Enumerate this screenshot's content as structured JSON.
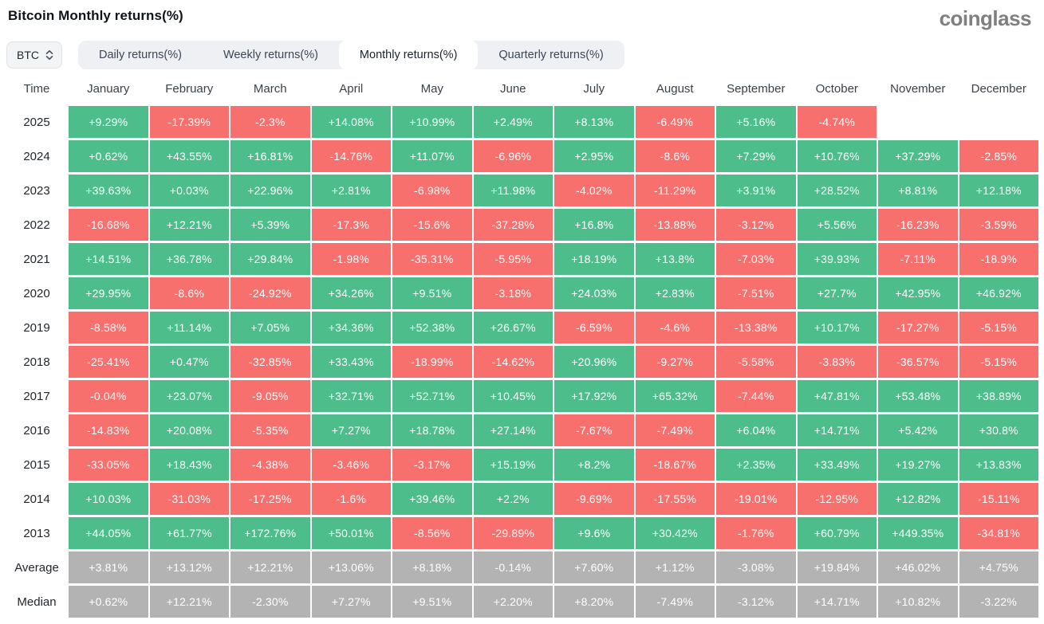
{
  "header": {
    "title": "Bitcoin Monthly returns(%)",
    "logo": "coinglass"
  },
  "controls": {
    "symbol": "BTC",
    "tabs": [
      {
        "id": "daily",
        "label": "Daily returns(%)",
        "active": false
      },
      {
        "id": "weekly",
        "label": "Weekly returns(%)",
        "active": false
      },
      {
        "id": "monthly",
        "label": "Monthly returns(%)",
        "active": true
      },
      {
        "id": "quarterly",
        "label": "Quarterly returns(%)",
        "active": false
      }
    ]
  },
  "chart_data": {
    "type": "heatmap",
    "title": "Bitcoin Monthly returns(%)",
    "colors": {
      "positive": "#4DBD8C",
      "negative": "#F7706E",
      "summary": "#B3B3B3"
    },
    "columns": [
      "Time",
      "January",
      "February",
      "March",
      "April",
      "May",
      "June",
      "July",
      "August",
      "September",
      "October",
      "November",
      "December"
    ],
    "rows": [
      {
        "label": "2025",
        "summary": false,
        "values": [
          "+9.29%",
          "-17.39%",
          "-2.3%",
          "+14.08%",
          "+10.99%",
          "+2.49%",
          "+8.13%",
          "-6.49%",
          "+5.16%",
          "-4.74%",
          null,
          null
        ]
      },
      {
        "label": "2024",
        "summary": false,
        "values": [
          "+0.62%",
          "+43.55%",
          "+16.81%",
          "-14.76%",
          "+11.07%",
          "-6.96%",
          "+2.95%",
          "-8.6%",
          "+7.29%",
          "+10.76%",
          "+37.29%",
          "-2.85%"
        ]
      },
      {
        "label": "2023",
        "summary": false,
        "values": [
          "+39.63%",
          "+0.03%",
          "+22.96%",
          "+2.81%",
          "-6.98%",
          "+11.98%",
          "-4.02%",
          "-11.29%",
          "+3.91%",
          "+28.52%",
          "+8.81%",
          "+12.18%"
        ]
      },
      {
        "label": "2022",
        "summary": false,
        "values": [
          "-16.68%",
          "+12.21%",
          "+5.39%",
          "-17.3%",
          "-15.6%",
          "-37.28%",
          "+16.8%",
          "-13.88%",
          "-3.12%",
          "+5.56%",
          "-16.23%",
          "-3.59%"
        ]
      },
      {
        "label": "2021",
        "summary": false,
        "values": [
          "+14.51%",
          "+36.78%",
          "+29.84%",
          "-1.98%",
          "-35.31%",
          "-5.95%",
          "+18.19%",
          "+13.8%",
          "-7.03%",
          "+39.93%",
          "-7.11%",
          "-18.9%"
        ]
      },
      {
        "label": "2020",
        "summary": false,
        "values": [
          "+29.95%",
          "-8.6%",
          "-24.92%",
          "+34.26%",
          "+9.51%",
          "-3.18%",
          "+24.03%",
          "+2.83%",
          "-7.51%",
          "+27.7%",
          "+42.95%",
          "+46.92%"
        ]
      },
      {
        "label": "2019",
        "summary": false,
        "values": [
          "-8.58%",
          "+11.14%",
          "+7.05%",
          "+34.36%",
          "+52.38%",
          "+26.67%",
          "-6.59%",
          "-4.6%",
          "-13.38%",
          "+10.17%",
          "-17.27%",
          "-5.15%"
        ]
      },
      {
        "label": "2018",
        "summary": false,
        "values": [
          "-25.41%",
          "+0.47%",
          "-32.85%",
          "+33.43%",
          "-18.99%",
          "-14.62%",
          "+20.96%",
          "-9.27%",
          "-5.58%",
          "-3.83%",
          "-36.57%",
          "-5.15%"
        ]
      },
      {
        "label": "2017",
        "summary": false,
        "values": [
          "-0.04%",
          "+23.07%",
          "-9.05%",
          "+32.71%",
          "+52.71%",
          "+10.45%",
          "+17.92%",
          "+65.32%",
          "-7.44%",
          "+47.81%",
          "+53.48%",
          "+38.89%"
        ]
      },
      {
        "label": "2016",
        "summary": false,
        "values": [
          "-14.83%",
          "+20.08%",
          "-5.35%",
          "+7.27%",
          "+18.78%",
          "+27.14%",
          "-7.67%",
          "-7.49%",
          "+6.04%",
          "+14.71%",
          "+5.42%",
          "+30.8%"
        ]
      },
      {
        "label": "2015",
        "summary": false,
        "values": [
          "-33.05%",
          "+18.43%",
          "-4.38%",
          "-3.46%",
          "-3.17%",
          "+15.19%",
          "+8.2%",
          "-18.67%",
          "+2.35%",
          "+33.49%",
          "+19.27%",
          "+13.83%"
        ]
      },
      {
        "label": "2014",
        "summary": false,
        "values": [
          "+10.03%",
          "-31.03%",
          "-17.25%",
          "-1.6%",
          "+39.46%",
          "+2.2%",
          "-9.69%",
          "-17.55%",
          "-19.01%",
          "-12.95%",
          "+12.82%",
          "-15.11%"
        ]
      },
      {
        "label": "2013",
        "summary": false,
        "values": [
          "+44.05%",
          "+61.77%",
          "+172.76%",
          "+50.01%",
          "-8.56%",
          "-29.89%",
          "+9.6%",
          "+30.42%",
          "-1.76%",
          "+60.79%",
          "+449.35%",
          "-34.81%"
        ]
      },
      {
        "label": "Average",
        "summary": true,
        "values": [
          "+3.81%",
          "+13.12%",
          "+12.21%",
          "+13.06%",
          "+8.18%",
          "-0.14%",
          "+7.60%",
          "+1.12%",
          "-3.08%",
          "+19.84%",
          "+46.02%",
          "+4.75%"
        ]
      },
      {
        "label": "Median",
        "summary": true,
        "values": [
          "+0.62%",
          "+12.21%",
          "-2.30%",
          "+7.27%",
          "+9.51%",
          "+2.20%",
          "+8.20%",
          "-7.49%",
          "-3.12%",
          "+14.71%",
          "+10.82%",
          "-3.22%"
        ]
      }
    ]
  }
}
